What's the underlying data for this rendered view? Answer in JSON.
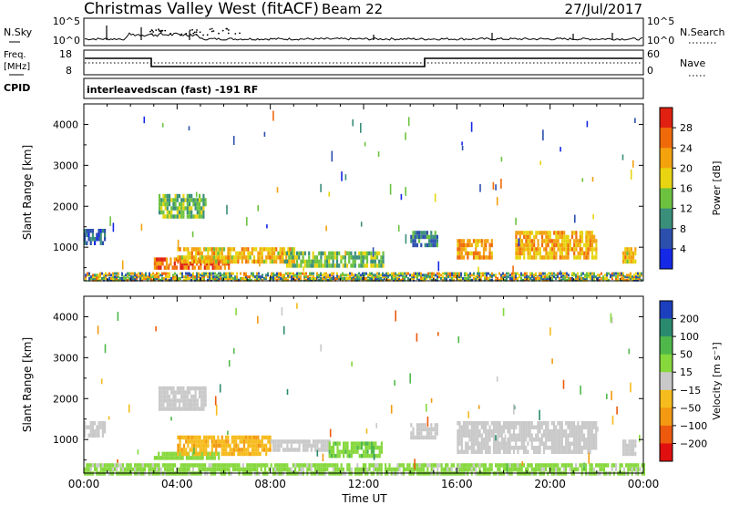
{
  "header": {
    "station": "Christmas Valley West (fitACF)",
    "beam": "Beam 22",
    "date": "27/Jul/2017"
  },
  "top_strip": {
    "nsky_label": "N.Sky",
    "nsky_ticks": [
      "10^5",
      "10^0"
    ],
    "nsearch_label": "N.Search",
    "nsearch_ticks": [
      "10^5",
      "10^0"
    ],
    "freq_label": "Freq.",
    "freq_unit": "[MHz]",
    "freq_ticks": [
      "18",
      "8"
    ],
    "nave_label": "Nave",
    "nave_ticks": [
      "60",
      "0"
    ],
    "cpid_label": "CPID",
    "cpid_text": "interleavedscan (fast) -191 RF"
  },
  "chart_data": [
    {
      "type": "heatmap",
      "name": "power",
      "ylabel": "Slant Range [km]",
      "y_ticks": [
        "1000",
        "2000",
        "3000",
        "4000"
      ],
      "yrange": [
        180,
        4500
      ],
      "xrange": [
        0,
        24
      ],
      "colorbar_label": "Power [dB]",
      "colorbar_ticks": [
        "4",
        "8",
        "12",
        "16",
        "20",
        "24",
        "28"
      ],
      "colorbar_colors": [
        "#1428e6",
        "#2c4fae",
        "#3a8f7a",
        "#6cc23f",
        "#e8d410",
        "#f3a20e",
        "#f06a0a",
        "#e02010"
      ],
      "colorbar_range": [
        0,
        32
      ],
      "patches": [
        {
          "t0": 0.0,
          "t1": 0.9,
          "r0": 1050,
          "r1": 1450,
          "v": 7
        },
        {
          "t0": 3.0,
          "t1": 6.2,
          "r0": 500,
          "r1": 750,
          "v": 26
        },
        {
          "t0": 4.0,
          "t1": 9.0,
          "r0": 650,
          "r1": 1000,
          "v": 20
        },
        {
          "t0": 8.5,
          "t1": 12.8,
          "r0": 550,
          "r1": 900,
          "v": 14
        },
        {
          "t0": 3.2,
          "t1": 5.2,
          "r0": 1700,
          "r1": 2300,
          "v": 13
        },
        {
          "t0": 14.0,
          "t1": 15.2,
          "r0": 1050,
          "r1": 1400,
          "v": 9
        },
        {
          "t0": 16.0,
          "t1": 17.5,
          "r0": 750,
          "r1": 1200,
          "v": 22
        },
        {
          "t0": 18.5,
          "t1": 22.0,
          "r0": 700,
          "r1": 1400,
          "v": 21
        },
        {
          "t0": 23.1,
          "t1": 23.7,
          "r0": 650,
          "r1": 1000,
          "v": 20
        }
      ]
    },
    {
      "type": "heatmap",
      "name": "velocity",
      "ylabel": "Slant Range [km]",
      "y_ticks": [
        "1000",
        "2000",
        "3000",
        "4000"
      ],
      "yrange": [
        180,
        4500
      ],
      "xrange": [
        0,
        24
      ],
      "x_ticks": [
        "00:00",
        "04:00",
        "08:00",
        "12:00",
        "16:00",
        "20:00",
        "00:00"
      ],
      "xlabel": "Time UT",
      "colorbar_label": "Velocity [m s⁻¹]",
      "colorbar_ticks": [
        "200",
        "100",
        "50",
        "15",
        "−15",
        "−50",
        "−100",
        "−200"
      ],
      "colorbar_colors": [
        "#1c3fbe",
        "#2a8a6e",
        "#4fb84a",
        "#86d83c",
        "#c9c9c9",
        "#f6bb1c",
        "#f39a12",
        "#ed5a0e",
        "#e01010"
      ],
      "patches": [
        {
          "t0": 0.0,
          "t1": 0.9,
          "r0": 1050,
          "r1": 1450,
          "v": 0
        },
        {
          "t0": 3.0,
          "t1": 5.8,
          "r0": 500,
          "r1": 700,
          "v": 30
        },
        {
          "t0": 4.0,
          "t1": 8.0,
          "r0": 680,
          "r1": 1100,
          "v": -40
        },
        {
          "t0": 8.0,
          "t1": 10.5,
          "r0": 700,
          "r1": 1000,
          "v": 0
        },
        {
          "t0": 10.5,
          "t1": 12.8,
          "r0": 550,
          "r1": 950,
          "v": 40
        },
        {
          "t0": 3.2,
          "t1": 5.2,
          "r0": 1700,
          "r1": 2300,
          "v": 0
        },
        {
          "t0": 14.0,
          "t1": 15.2,
          "r0": 1050,
          "r1": 1400,
          "v": 0
        },
        {
          "t0": 16.0,
          "t1": 22.0,
          "r0": 700,
          "r1": 1450,
          "v": 0
        },
        {
          "t0": 23.1,
          "t1": 23.7,
          "r0": 650,
          "r1": 1000,
          "v": 0
        },
        {
          "t0": 0.0,
          "t1": 24.0,
          "r0": 180,
          "r1": 420,
          "v": 25
        }
      ]
    }
  ]
}
